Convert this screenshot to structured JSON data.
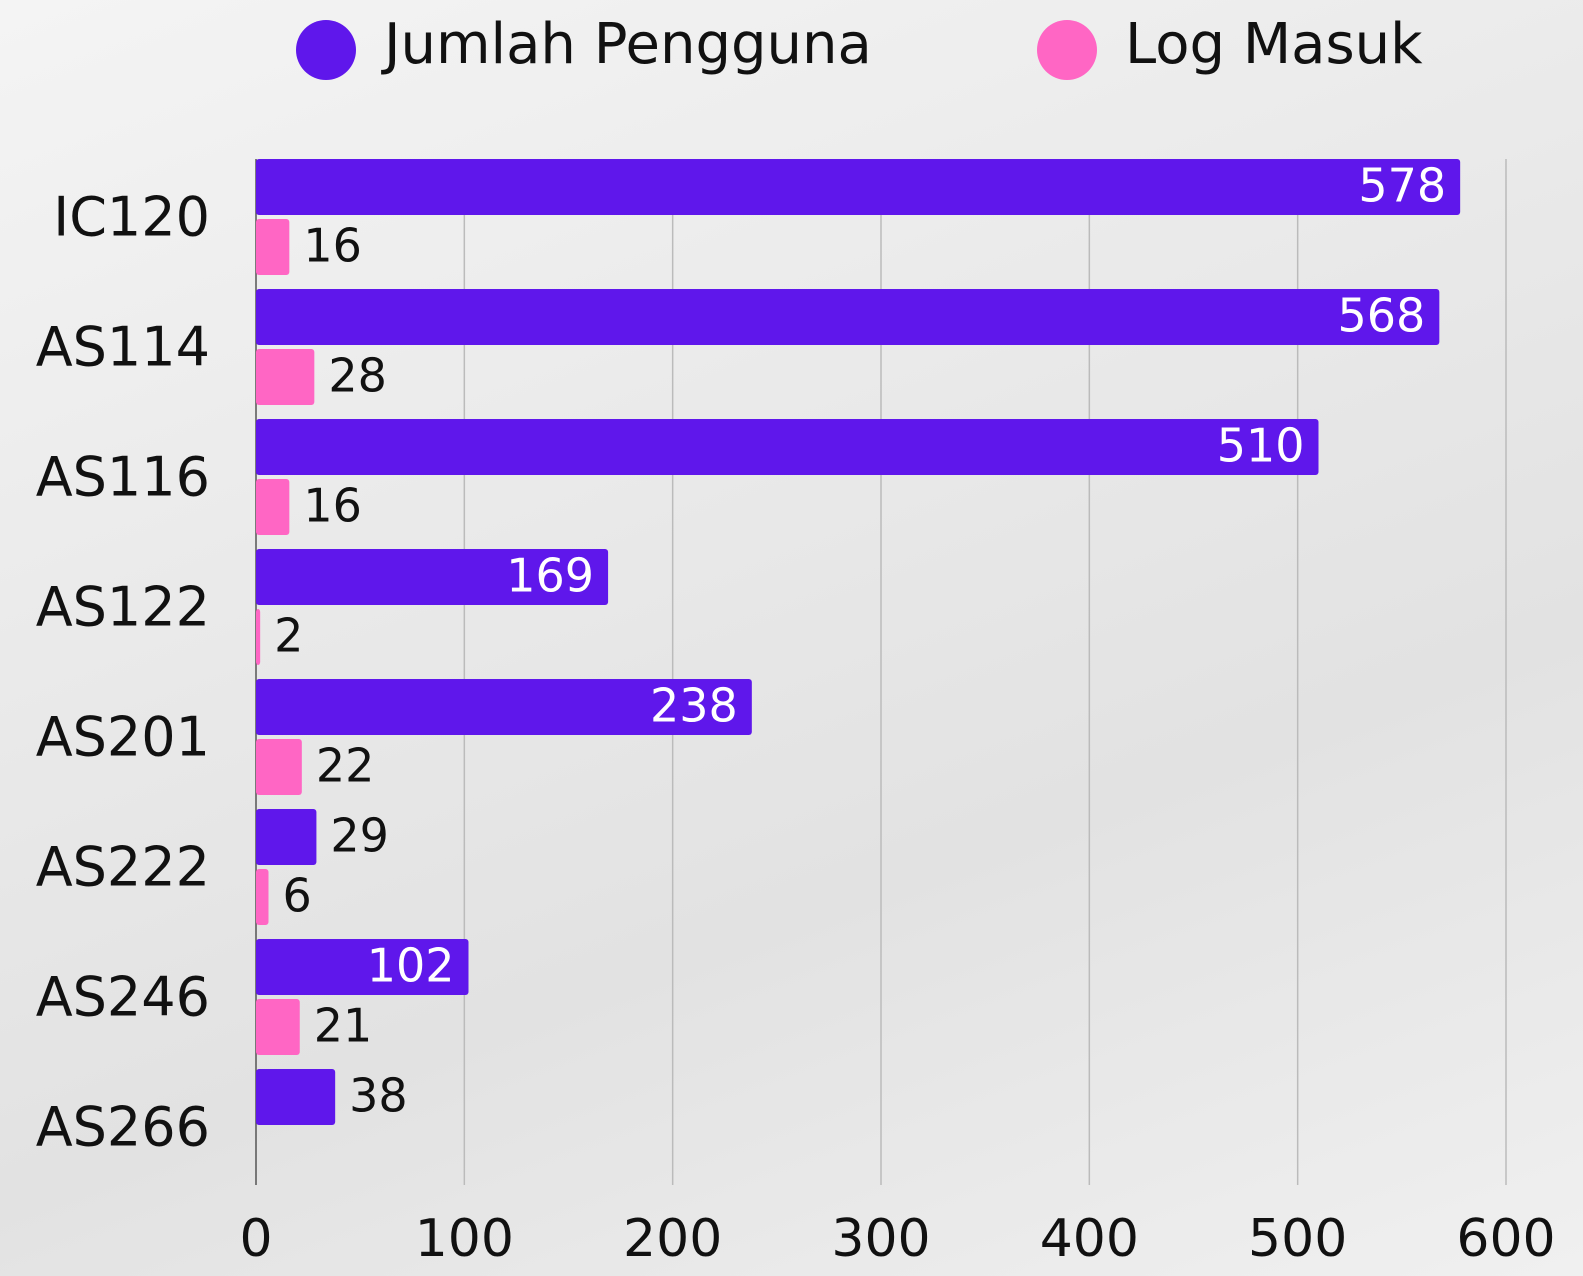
{
  "chart_data": {
    "type": "bar",
    "orientation": "horizontal",
    "categories": [
      "IC120",
      "AS114",
      "AS116",
      "AS122",
      "AS201",
      "AS222",
      "AS246",
      "AS266"
    ],
    "series": [
      {
        "name": "Jumlah Pengguna",
        "color": "#5f17eb",
        "values": [
          578,
          568,
          510,
          169,
          238,
          29,
          102,
          38
        ]
      },
      {
        "name": "Log Masuk",
        "color": "#ff66c4",
        "values": [
          16,
          28,
          16,
          2,
          22,
          6,
          21,
          null
        ]
      }
    ],
    "xlim": [
      0,
      600
    ],
    "xticks": [
      0,
      100,
      200,
      300,
      400,
      500,
      600
    ],
    "grid": true,
    "legend": "top"
  }
}
